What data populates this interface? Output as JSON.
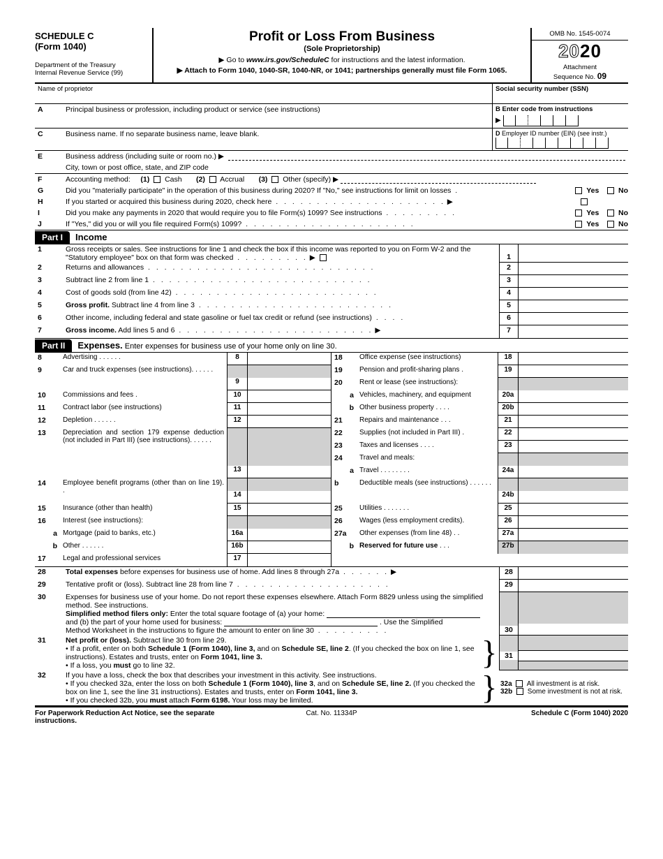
{
  "header": {
    "schedule": "SCHEDULE C",
    "form": "(Form 1040)",
    "dept": "Department of the Treasury",
    "irs": "Internal Revenue Service (99)",
    "title": "Profit or Loss From Business",
    "subtitle": "(Sole Proprietorship)",
    "goto_prefix": "▶ Go to ",
    "goto_url": "www.irs.gov/ScheduleC",
    "goto_suffix": " for instructions and the latest information.",
    "attach": "▶ Attach to Form 1040, 1040-SR, 1040-NR, or 1041; partnerships generally must file Form 1065.",
    "omb": "OMB No. 1545-0074",
    "year_outline": "20",
    "year_solid": "20",
    "attachment": "Attachment",
    "seq": "Sequence No. ",
    "seqno": "09"
  },
  "name": {
    "label": "Name of proprietor",
    "ssn": "Social security number (SSN)"
  },
  "secA": {
    "lbl": "A",
    "text": "Principal business or profession, including product or service (see instructions)",
    "B_lbl": "B",
    "B_text": "Enter code from instructions"
  },
  "secC": {
    "lbl": "C",
    "text": "Business name. If no separate business name, leave blank.",
    "D_lbl": "D",
    "D_text": "Employer ID number (EIN) (see instr.)"
  },
  "secE": {
    "lbl": "E",
    "addr": "Business address (including suite or room no.) ▶",
    "city": "City, town or post office, state, and ZIP code"
  },
  "secF": {
    "lbl": "F",
    "text": "Accounting method:",
    "opt1": "(1)",
    "opt1t": "Cash",
    "opt2": "(2)",
    "opt2t": "Accrual",
    "opt3": "(3)",
    "opt3t": "Other (specify) ▶"
  },
  "secG": {
    "lbl": "G",
    "text": "Did you \"materially participate\" in the operation of this business during 2020? If \"No,\" see instructions for limit on losses",
    "yes": "Yes",
    "no": "No"
  },
  "secH": {
    "lbl": "H",
    "text": "If you started or acquired this business during 2020, check here"
  },
  "secI": {
    "lbl": "I",
    "text": "Did you make any payments in 2020 that would require you to file Form(s) 1099? See instructions",
    "yes": "Yes",
    "no": "No"
  },
  "secJ": {
    "lbl": "J",
    "text": "If \"Yes,\" did you or will you file required Form(s) 1099?",
    "yes": "Yes",
    "no": "No"
  },
  "part1": {
    "tag": "Part I",
    "title": "Income"
  },
  "lines1": {
    "l1": {
      "n": "1",
      "t": "Gross receipts or sales. See instructions for line 1 and check the box if this income was reported to you on Form W-2 and the \"Statutory employee\" box on that form was checked",
      "num": "1"
    },
    "l2": {
      "n": "2",
      "t": "Returns and allowances",
      "num": "2"
    },
    "l3": {
      "n": "3",
      "t": "Subtract line 2 from line 1",
      "num": "3"
    },
    "l4": {
      "n": "4",
      "t": "Cost of goods sold (from line 42)",
      "num": "4"
    },
    "l5": {
      "n": "5",
      "t": "Gross profit.",
      "t2": " Subtract line 4 from line 3",
      "num": "5"
    },
    "l6": {
      "n": "6",
      "t": "Other income, including federal and state gasoline or fuel tax credit or refund (see instructions)",
      "num": "6"
    },
    "l7": {
      "n": "7",
      "t": "Gross income.",
      "t2": " Add lines 5 and 6",
      "num": "7"
    }
  },
  "part2": {
    "tag": "Part II",
    "title": "Expenses.",
    "sub": " Enter expenses for business use of your home only on line 30."
  },
  "expL": [
    {
      "n": "8",
      "t": "Advertising",
      "num": "8",
      "dots": ".   .   .   .   .   ."
    },
    {
      "n": "9",
      "t": "Car and truck expenses (see instructions).",
      "num": "9",
      "dots": ".   .   .   .   .",
      "multi": true
    },
    {
      "n": "10",
      "t": "Commissions and fees",
      "num": "10",
      "dots": "  ."
    },
    {
      "n": "11",
      "t": "Contract labor (see instructions)",
      "num": "11",
      "dots": ""
    },
    {
      "n": "12",
      "t": "Depletion",
      "num": "12",
      "dots": ".   .   .   .   .   ."
    },
    {
      "n": "13",
      "t": "Depreciation and section 179 expense deduction (not included in Part III) (see instructions).",
      "num": "13",
      "dots": ".   .   .   .   .",
      "multi4": true
    },
    {
      "n": "14",
      "t": "Employee benefit programs (other than on line 19).",
      "num": "14",
      "dots": "  .",
      "multi": true
    },
    {
      "n": "15",
      "t": "Insurance (other than health)",
      "num": "15",
      "dots": ""
    },
    {
      "n": "16",
      "t": "Interest (see instructions):",
      "num": "",
      "header": true
    },
    {
      "n": "a",
      "t": "Mortgage (paid to banks, etc.)",
      "num": "16a",
      "sub": true
    },
    {
      "n": "b",
      "t": "Other",
      "num": "16b",
      "sub": true,
      "dots": ".   .   .   .   .   ."
    },
    {
      "n": "17",
      "t": "Legal and professional services",
      "num": "17"
    }
  ],
  "expR": [
    {
      "n": "18",
      "t": "Office expense (see instructions)",
      "num": "18"
    },
    {
      "n": "19",
      "t": "Pension and profit-sharing plans",
      "num": "19",
      "dots": "."
    },
    {
      "n": "20",
      "t": "Rent or lease (see instructions):",
      "num": "",
      "header": true
    },
    {
      "n": "a",
      "t": "Vehicles, machinery, and equipment",
      "num": "20a",
      "sub": true
    },
    {
      "n": "b",
      "t": "Other business property",
      "num": "20b",
      "sub": true,
      "dots": ".   .   .   ."
    },
    {
      "n": "21",
      "t": "Repairs and maintenance",
      "num": "21",
      "dots": ".   .   ."
    },
    {
      "n": "22",
      "t": "Supplies (not included in Part III)",
      "num": "22",
      "dots": "."
    },
    {
      "n": "23",
      "t": "Taxes and licenses",
      "num": "23",
      "dots": ".   .   .   ."
    },
    {
      "n": "24",
      "t": "Travel and meals:",
      "num": "",
      "header": true
    },
    {
      "n": "a",
      "t": "Travel .",
      "num": "24a",
      "sub": true,
      "dots": ".   .   .   .   .   .   ."
    },
    {
      "n": "b",
      "t": "Deductible meals (see instructions)",
      "num": "24b",
      "sub": true,
      "dots": ".   .   .   .   .   .",
      "multi": true
    },
    {
      "n": "25",
      "t": "Utilities",
      "num": "25",
      "dots": ".   .   .   .   .   .   ."
    },
    {
      "n": "26",
      "t": "Wages (less employment credits).",
      "num": "26"
    },
    {
      "n": "27a",
      "t": "Other expenses (from line 48) .",
      "num": "27a",
      "dots": "."
    },
    {
      "n": "b",
      "t": "Reserved for future use",
      "num": "27b",
      "sub": true,
      "dots": ".   .   .",
      "bold": true,
      "shaded": true
    }
  ],
  "l28": {
    "n": "28",
    "t": "Total expenses",
    "t2": " before expenses for business use of home. Add lines 8 through 27a",
    "num": "28"
  },
  "l29": {
    "n": "29",
    "t": "Tentative profit or (loss). Subtract line 28 from line 7",
    "num": "29"
  },
  "l30": {
    "n": "30",
    "t1": "Expenses for business use of your home. Do not report these expenses elsewhere. Attach Form 8829 unless using the simplified method. See instructions.",
    "t2": "Simplified method filers only:",
    "t3": " Enter the total square footage of (a) your home:",
    "t4": "and (b) the part of your home used for business:",
    "t5": ". Use the Simplified",
    "t6": "Method Worksheet in the instructions to figure the amount to enter on line 30",
    "num": "30"
  },
  "l31": {
    "n": "31",
    "t1": "Net profit or (loss).",
    "t2": " Subtract line 30 from line 29.",
    "b1": "•  If a profit, enter on both ",
    "b1b": "Schedule 1 (Form 1040), line 3,",
    "b1c": " and on ",
    "b1d": "Schedule SE, line 2",
    "b1e": ". (If you checked the box on line 1, see instructions). Estates and trusts, enter on ",
    "b1f": "Form 1041, line 3.",
    "b2": "•  If a loss, you ",
    "b2b": "must",
    "b2c": " go to line 32.",
    "num": "31"
  },
  "l32": {
    "n": "32",
    "t1": "If you have a loss, check the box that describes your investment in this activity. See instructions.",
    "b1": "•  If you checked 32a, enter the loss on both ",
    "b1b": "Schedule 1 (Form 1040), line 3",
    "b1c": ", and on ",
    "b1d": "Schedule SE, line 2.",
    "b1e": " (If you checked the box on line 1, see the line 31 instructions). Estates and trusts, enter on ",
    "b1f": "Form 1041, line 3.",
    "b2": "•  If you checked 32b, you ",
    "b2b": "must",
    "b2c": " attach ",
    "b2d": "Form 6198.",
    "b2e": " Your loss may be limited.",
    "a32a": "32a",
    "a32at": "All investment is at risk.",
    "a32b": "32b",
    "a32bt": "Some investment is not at risk."
  },
  "footer": {
    "left": "For Paperwork Reduction Act Notice, see the separate instructions.",
    "mid": "Cat. No. 11334P",
    "right": "Schedule C (Form 1040) 2020"
  }
}
